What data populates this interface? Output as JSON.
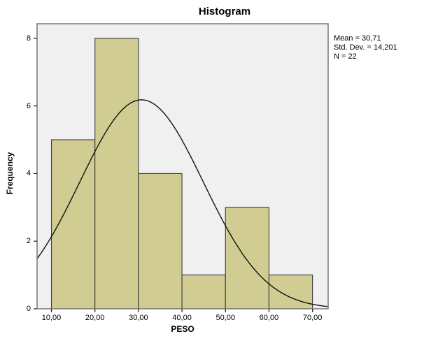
{
  "title": "Histogram",
  "axes": {
    "x_title": "PESO",
    "y_title": "Frequency"
  },
  "stats_box": {
    "line1": "Mean = 30,71",
    "line2": "Std. Dev. = 14,201",
    "line3": "N = 22"
  },
  "chart_data": {
    "type": "bar",
    "subtype": "histogram",
    "title": "Histogram",
    "xlabel": "PESO",
    "ylabel": "Frequency",
    "bin_edges": [
      10,
      20,
      30,
      40,
      50,
      60,
      70
    ],
    "frequencies": [
      5,
      8,
      4,
      1,
      3,
      1
    ],
    "x_tick_values": [
      10,
      20,
      30,
      40,
      50,
      60,
      70
    ],
    "x_tick_labels": [
      "10,00",
      "20,00",
      "30,00",
      "40,00",
      "50,00",
      "60,00",
      "70,00"
    ],
    "y_tick_values": [
      0,
      2,
      4,
      6,
      8
    ],
    "y_tick_labels": [
      "0",
      "2",
      "4",
      "6",
      "8"
    ],
    "x_range": [
      6.7,
      73.6
    ],
    "y_range": [
      0,
      8.43
    ],
    "grid": false,
    "legend": false,
    "normal_curve": {
      "mean": 30.71,
      "std_dev": 14.201,
      "n": 22,
      "bin_width": 10
    },
    "annotation_lines": [
      "Mean = 30,71",
      "Std. Dev. = 14,201",
      "N = 22"
    ],
    "colors": {
      "bar_fill": "#d1cc92",
      "bar_stroke": "#3a3a3a",
      "plot_background": "#f0f0f0",
      "frame": "#767676",
      "curve": "#111111",
      "tick": "#1a1a1a",
      "canvas_background": "#ffffff",
      "text": "#000000"
    }
  }
}
